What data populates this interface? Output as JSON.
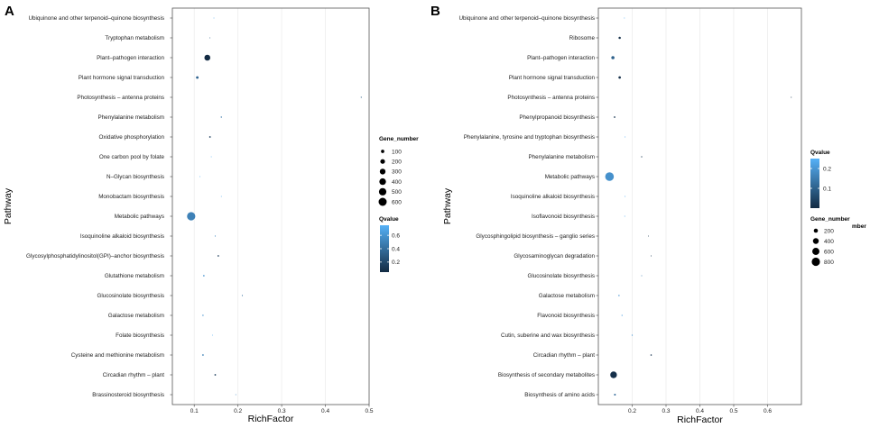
{
  "chart_data": [
    {
      "panel": "A",
      "type": "scatter",
      "xlabel": "RichFactor",
      "ylabel": "Pathway",
      "xlim": [
        0.05,
        0.5
      ],
      "xticks": [
        0.1,
        0.2,
        0.3,
        0.4,
        0.5
      ],
      "xtick_labels": [
        "0.1",
        "0.2",
        "0.3",
        "0.4",
        "0.5"
      ],
      "size_legend": {
        "title": "Gene_number",
        "values": [
          100,
          200,
          300,
          400,
          500,
          600
        ],
        "labels": [
          "100",
          "200",
          "300",
          "400",
          "500",
          "600"
        ]
      },
      "color_legend": {
        "title": "Qvalue",
        "ticks": [
          0.2,
          0.4,
          0.6
        ],
        "labels": [
          "0.2",
          "0.4",
          "0.6"
        ],
        "min": 0.05,
        "max": 0.75
      },
      "points": [
        {
          "pathway": "Ubiquinone and other terpenoid–quinone biosynthesis",
          "rich_factor": 0.145,
          "gene_number": 5,
          "qvalue": 0.72
        },
        {
          "pathway": "Tryptophan metabolism",
          "rich_factor": 0.136,
          "gene_number": 5,
          "qvalue": 0.3
        },
        {
          "pathway": "Plant–pathogen interaction",
          "rich_factor": 0.13,
          "gene_number": 320,
          "qvalue": 0.05
        },
        {
          "pathway": "Plant hormone signal transduction",
          "rich_factor": 0.107,
          "gene_number": 60,
          "qvalue": 0.35
        },
        {
          "pathway": "Photosynthesis – antenna proteins",
          "rich_factor": 0.482,
          "gene_number": 10,
          "qvalue": 0.3
        },
        {
          "pathway": "Phenylalanine metabolism",
          "rich_factor": 0.162,
          "gene_number": 15,
          "qvalue": 0.45
        },
        {
          "pathway": "Oxidative phosphorylation",
          "rich_factor": 0.136,
          "gene_number": 25,
          "qvalue": 0.15
        },
        {
          "pathway": "One carbon pool by folate",
          "rich_factor": 0.139,
          "gene_number": 5,
          "qvalue": 0.75
        },
        {
          "pathway": "N–Glycan biosynthesis",
          "rich_factor": 0.113,
          "gene_number": 5,
          "qvalue": 0.75
        },
        {
          "pathway": "Monobactam biosynthesis",
          "rich_factor": 0.162,
          "gene_number": 5,
          "qvalue": 0.72
        },
        {
          "pathway": "Metabolic pathways",
          "rich_factor": 0.093,
          "gene_number": 630,
          "qvalue": 0.5
        },
        {
          "pathway": "Isoquinoline alkaloid biosynthesis",
          "rich_factor": 0.148,
          "gene_number": 10,
          "qvalue": 0.55
        },
        {
          "pathway": "Glycosylphosphatidylinositol(GPI)–anchor biosynthesis",
          "rich_factor": 0.155,
          "gene_number": 20,
          "qvalue": 0.15
        },
        {
          "pathway": "Glutathione metabolism",
          "rich_factor": 0.122,
          "gene_number": 20,
          "qvalue": 0.6
        },
        {
          "pathway": "Glucosinolate biosynthesis",
          "rich_factor": 0.21,
          "gene_number": 10,
          "qvalue": 0.4
        },
        {
          "pathway": "Galactose metabolism",
          "rich_factor": 0.12,
          "gene_number": 15,
          "qvalue": 0.6
        },
        {
          "pathway": "Folate biosynthesis",
          "rich_factor": 0.142,
          "gene_number": 5,
          "qvalue": 0.75
        },
        {
          "pathway": "Cysteine and methionine metabolism",
          "rich_factor": 0.12,
          "gene_number": 25,
          "qvalue": 0.5
        },
        {
          "pathway": "Circadian rhythm – plant",
          "rich_factor": 0.148,
          "gene_number": 25,
          "qvalue": 0.15
        },
        {
          "pathway": "Brassinosteroid biosynthesis",
          "rich_factor": 0.195,
          "gene_number": 5,
          "qvalue": 0.55
        }
      ]
    },
    {
      "panel": "B",
      "type": "scatter",
      "xlabel": "RichFactor",
      "ylabel": "Pathway",
      "xlim": [
        0.1,
        0.7
      ],
      "xticks": [
        0.2,
        0.3,
        0.4,
        0.5,
        0.6
      ],
      "xtick_labels": [
        "0.2",
        "0.3",
        "0.4",
        "0.5",
        "0.6"
      ],
      "size_legend": {
        "title": "Gene_number",
        "title_fragment": "mber",
        "values": [
          200,
          400,
          600,
          800
        ],
        "labels": [
          "200",
          "400",
          "600",
          "800"
        ]
      },
      "color_legend": {
        "title": "Qvalue",
        "ticks": [
          0.1,
          0.2
        ],
        "labels": [
          "0.1",
          "0.2"
        ],
        "min": 0.0,
        "max": 0.25
      },
      "points": [
        {
          "pathway": "Ubiquinone and other terpenoid–quinone biosynthesis",
          "rich_factor": 0.177,
          "gene_number": 5,
          "qvalue": 0.24
        },
        {
          "pathway": "Ribosome",
          "rich_factor": 0.163,
          "gene_number": 60,
          "qvalue": 0.01
        },
        {
          "pathway": "Plant–pathogen interaction",
          "rich_factor": 0.143,
          "gene_number": 120,
          "qvalue": 0.1
        },
        {
          "pathway": "Plant hormone signal transduction",
          "rich_factor": 0.163,
          "gene_number": 70,
          "qvalue": 0.01
        },
        {
          "pathway": "Photosynthesis – antenna proteins",
          "rich_factor": 0.67,
          "gene_number": 10,
          "qvalue": 0.02
        },
        {
          "pathway": "Phenylpropanoid biosynthesis",
          "rich_factor": 0.148,
          "gene_number": 30,
          "qvalue": 0.02
        },
        {
          "pathway": "Phenylalanine, tyrosine and tryptophan biosynthesis",
          "rich_factor": 0.179,
          "gene_number": 10,
          "qvalue": 0.24
        },
        {
          "pathway": "Phenylalanine metabolism",
          "rich_factor": 0.228,
          "gene_number": 15,
          "qvalue": 0.02
        },
        {
          "pathway": "Metabolic pathways",
          "rich_factor": 0.133,
          "gene_number": 880,
          "qvalue": 0.19
        },
        {
          "pathway": "Isoquinoline alkaloid biosynthesis",
          "rich_factor": 0.179,
          "gene_number": 10,
          "qvalue": 0.24
        },
        {
          "pathway": "Isoflavonoid biosynthesis",
          "rich_factor": 0.178,
          "gene_number": 10,
          "qvalue": 0.24
        },
        {
          "pathway": "Glycosphingolipid biosynthesis – ganglio series",
          "rich_factor": 0.248,
          "gene_number": 5,
          "qvalue": 0.02
        },
        {
          "pathway": "Glycosaminoglycan degradation",
          "rich_factor": 0.256,
          "gene_number": 10,
          "qvalue": 0.02
        },
        {
          "pathway": "Glucosinolate biosynthesis",
          "rich_factor": 0.228,
          "gene_number": 10,
          "qvalue": 0.15
        },
        {
          "pathway": "Galactose metabolism",
          "rich_factor": 0.161,
          "gene_number": 20,
          "qvalue": 0.2
        },
        {
          "pathway": "Flavonoid biosynthesis",
          "rich_factor": 0.17,
          "gene_number": 15,
          "qvalue": 0.22
        },
        {
          "pathway": "Cutin, suberine and wax biosynthesis",
          "rich_factor": 0.2,
          "gene_number": 15,
          "qvalue": 0.2
        },
        {
          "pathway": "Circadian rhythm – plant",
          "rich_factor": 0.256,
          "gene_number": 25,
          "qvalue": 0.02
        },
        {
          "pathway": "Biosynthesis of secondary metabolites",
          "rich_factor": 0.145,
          "gene_number": 520,
          "qvalue": 0.01
        },
        {
          "pathway": "Biosynthesis of amino acids",
          "rich_factor": 0.149,
          "gene_number": 40,
          "qvalue": 0.12
        }
      ]
    }
  ]
}
